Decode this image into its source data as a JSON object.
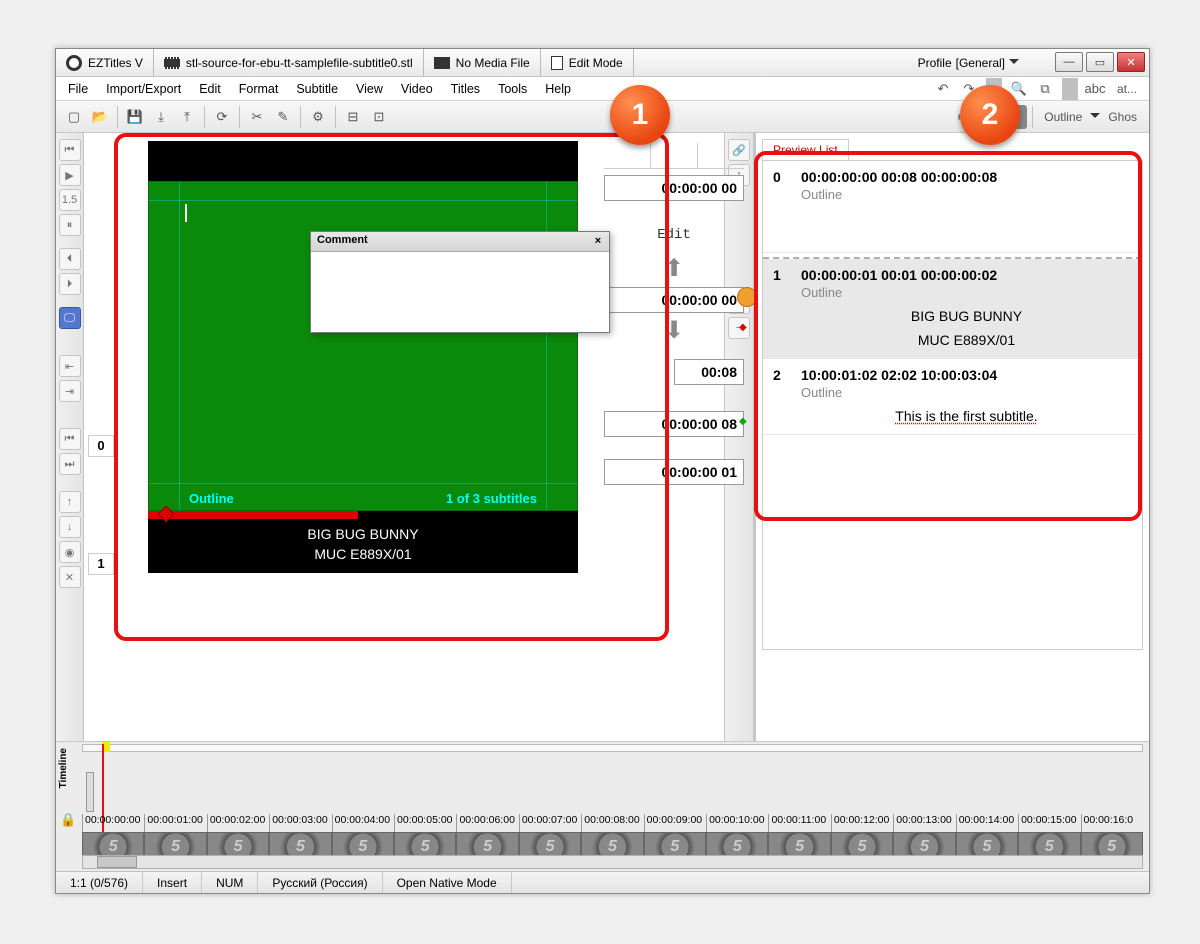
{
  "title": {
    "app": "EZTitles V",
    "file": "stl-source-for-ebu-tt-samplefile-subtitle0.stl",
    "media": "No Media File",
    "mode": "Edit Mode",
    "profile_label": "Profile",
    "profile_value": "[General]"
  },
  "menu": [
    "File",
    "Import/Export",
    "Edit",
    "Format",
    "Subtitle",
    "View",
    "Video",
    "Titles",
    "Tools",
    "Help"
  ],
  "toolbar2": {
    "outline": "Outline",
    "ghost": "Ghos",
    "at": "at..."
  },
  "editor": {
    "num0": "0",
    "num1": "1",
    "tc_in_top": "00:00:00 00",
    "tc_edit": "Edit",
    "tc_mid": "00:00:00 00",
    "tc_dur": "00:08",
    "tc_out": "00:00:00 08",
    "tc_next": "00:00:00 01",
    "overlay_style": "Outline",
    "overlay_count": "1 of 3 subtitles",
    "sub_line1": "BIG BUG BUNNY",
    "sub_line2": "MUC E889X/01",
    "comment_title": "Comment"
  },
  "preview": {
    "tab": "Preview List",
    "items": {
      "0": {
        "idx": "0",
        "tc": "00:00:00:00  00:08  00:00:00:08",
        "style": "Outline",
        "text": ""
      },
      "1": {
        "idx": "1",
        "tc": "00:00:00:01  00:01  00:00:00:02",
        "style": "Outline",
        "l1": "BIG BUG BUNNY",
        "l2": "MUC E889X/01"
      },
      "2": {
        "idx": "2",
        "tc": "10:00:01:02  02:02  10:00:03:04",
        "style": "Outline",
        "text": "This is the first subtitle."
      }
    }
  },
  "timeline": {
    "label": "Timeline",
    "tcodes": [
      "00:00:00:00",
      "00:00:01:00",
      "00:00:02:00",
      "00:00:03:00",
      "00:00:04:00",
      "00:00:05:00",
      "00:00:06:00",
      "00:00:07:00",
      "00:00:08:00",
      "00:00:09:00",
      "00:00:10:00",
      "00:00:11:00",
      "00:00:12:00",
      "00:00:13:00",
      "00:00:14:00",
      "00:00:15:00",
      "00:00:16:0"
    ],
    "thumb_label": "5"
  },
  "status": {
    "pos": "1:1 (0/576)",
    "ins": "Insert",
    "num": "NUM",
    "lang": "Русский (Россия)",
    "mode": "Open Native Mode"
  },
  "callouts": {
    "one": "1",
    "two": "2"
  }
}
